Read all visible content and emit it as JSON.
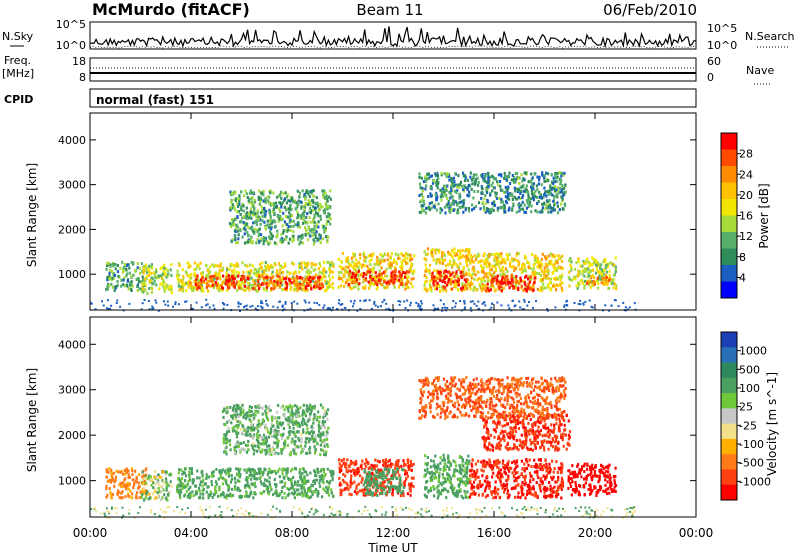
{
  "header": {
    "station": "McMurdo (fitACF)",
    "beam": "Beam 11",
    "date": "06/Feb/2010"
  },
  "noise_panel": {
    "left_label": "N.Sky",
    "right_label": "N.Search",
    "ticks_left": [
      "10^5",
      "10^0"
    ],
    "ticks_right": [
      "10^5",
      "10^0"
    ]
  },
  "freq_panel": {
    "left_label_top": "Freq.",
    "left_label_bottom": "[MHz]",
    "right_label": "Nave",
    "ticks_left": [
      "18",
      "8"
    ],
    "ticks_right": [
      "60",
      "0"
    ]
  },
  "cpid": {
    "label": "CPID",
    "value": "normal (fast) 151"
  },
  "x_axis": {
    "title": "Time UT",
    "ticks": [
      "00:00",
      "04:00",
      "08:00",
      "12:00",
      "16:00",
      "20:00",
      "00:00"
    ]
  },
  "power_panel": {
    "ylabel": "Slant Range [km]",
    "yticks": [
      "1000",
      "2000",
      "3000",
      "4000"
    ],
    "colorbar_label": "Power [dB]",
    "colorbar_ticks": [
      "28",
      "24",
      "20",
      "16",
      "12",
      "8",
      "4"
    ],
    "colors": [
      "#ff0000",
      "#ff4a00",
      "#ff8c00",
      "#ffc200",
      "#f2e600",
      "#a8dc3c",
      "#56b06a",
      "#2e8c5a",
      "#1a5fc0",
      "#0000ff"
    ]
  },
  "velocity_panel": {
    "ylabel": "Slant Range [km]",
    "yticks": [
      "1000",
      "2000",
      "3000",
      "4000"
    ],
    "colorbar_label": "Velocity [m s^-1]",
    "colorbar_ticks": [
      "1000",
      "500",
      "100",
      "25",
      "-25",
      "-100",
      "-500",
      "-1000"
    ],
    "colors": [
      "#1d3fb5",
      "#2a70b8",
      "#2e8a5e",
      "#4aa060",
      "#6ec83a",
      "#c8c8c8",
      "#f2e08a",
      "#ffb000",
      "#ff7a18",
      "#ff4010",
      "#ff0000"
    ]
  },
  "chart_data": [
    {
      "type": "heatmap",
      "title": "Power [dB]",
      "xlabel": "Time UT",
      "ylabel": "Slant Range [km]",
      "xlim": [
        0,
        24
      ],
      "ylim": [
        200,
        4600
      ],
      "colorbar_range": [
        0,
        30
      ],
      "blobs": [
        {
          "t0": 0.6,
          "t1": 2.2,
          "r0": 650,
          "r1": 1300,
          "value": 10
        },
        {
          "t0": 2.0,
          "t1": 3.2,
          "r0": 600,
          "r1": 1250,
          "value": 14
        },
        {
          "t0": 3.4,
          "t1": 9.6,
          "r0": 650,
          "r1": 1300,
          "value": 16
        },
        {
          "t0": 3.9,
          "t1": 9.2,
          "r0": 700,
          "r1": 1000,
          "value": 26
        },
        {
          "t0": 9.8,
          "t1": 12.8,
          "r0": 700,
          "r1": 1500,
          "value": 18
        },
        {
          "t0": 10.2,
          "t1": 12.6,
          "r0": 800,
          "r1": 1100,
          "value": 27
        },
        {
          "t0": 13.2,
          "t1": 15.0,
          "r0": 650,
          "r1": 1600,
          "value": 18
        },
        {
          "t0": 13.5,
          "t1": 14.9,
          "r0": 700,
          "r1": 1100,
          "value": 28
        },
        {
          "t0": 15.0,
          "t1": 18.7,
          "r0": 650,
          "r1": 1500,
          "value": 18
        },
        {
          "t0": 15.6,
          "t1": 17.6,
          "r0": 650,
          "r1": 1000,
          "value": 27
        },
        {
          "t0": 18.9,
          "t1": 20.8,
          "r0": 700,
          "r1": 1400,
          "value": 14
        },
        {
          "t0": 19.6,
          "t1": 20.6,
          "r0": 800,
          "r1": 1000,
          "value": 22
        },
        {
          "t0": 13.0,
          "t1": 18.8,
          "r0": 2400,
          "r1": 3300,
          "value": 8
        },
        {
          "t0": 5.5,
          "t1": 9.5,
          "r0": 1700,
          "r1": 2900,
          "value": 10
        }
      ]
    },
    {
      "type": "heatmap",
      "title": "Velocity [m s^-1]",
      "xlabel": "Time UT",
      "ylabel": "Slant Range [km]",
      "xlim": [
        0,
        24
      ],
      "ylim": [
        200,
        4600
      ],
      "colorbar_ticks": [
        1000,
        500,
        100,
        25,
        -25,
        -100,
        -500,
        -1000
      ],
      "blobs": [
        {
          "t0": 0.6,
          "t1": 2.2,
          "r0": 650,
          "r1": 1300,
          "value": -150
        },
        {
          "t0": 2.0,
          "t1": 3.2,
          "r0": 600,
          "r1": 1250,
          "value": 60
        },
        {
          "t0": 3.4,
          "t1": 9.6,
          "r0": 650,
          "r1": 1300,
          "value": 150
        },
        {
          "t0": 5.2,
          "t1": 9.4,
          "r0": 1600,
          "r1": 2700,
          "value": 120
        },
        {
          "t0": 9.8,
          "t1": 12.8,
          "r0": 700,
          "r1": 1500,
          "value": -450
        },
        {
          "t0": 10.8,
          "t1": 12.4,
          "r0": 700,
          "r1": 1300,
          "value": 200
        },
        {
          "t0": 13.2,
          "t1": 15.0,
          "r0": 650,
          "r1": 1600,
          "value": 150
        },
        {
          "t0": 15.0,
          "t1": 18.7,
          "r0": 650,
          "r1": 1500,
          "value": -500
        },
        {
          "t0": 15.5,
          "t1": 19.0,
          "r0": 1700,
          "r1": 2500,
          "value": -450
        },
        {
          "t0": 18.9,
          "t1": 20.8,
          "r0": 700,
          "r1": 1400,
          "value": -600
        },
        {
          "t0": 13.0,
          "t1": 18.8,
          "r0": 2400,
          "r1": 3300,
          "value": -300
        }
      ]
    }
  ]
}
